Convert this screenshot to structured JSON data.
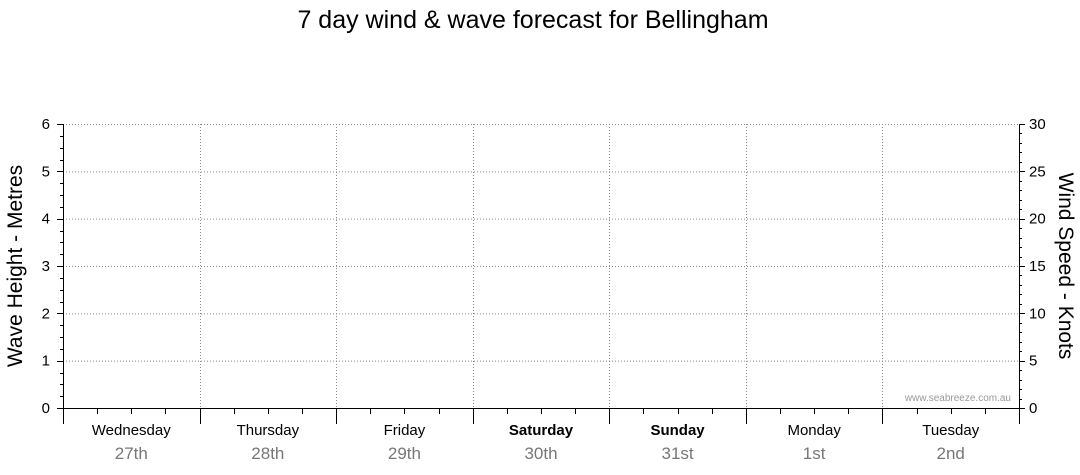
{
  "chart_data": {
    "type": "line",
    "title": "7 day wind & wave forecast for Bellingham",
    "ylabel": "Wave Height - Metres",
    "y2label": "Wind Speed - Knots",
    "ylim": [
      0,
      6
    ],
    "y2lim": [
      0,
      30
    ],
    "yticks": [
      "0",
      "1",
      "2",
      "3",
      "4",
      "5",
      "6"
    ],
    "y2ticks": [
      "0",
      "5",
      "10",
      "15",
      "20",
      "25",
      "30"
    ],
    "days": [
      {
        "name": "Wednesday",
        "date": "27th",
        "bold": false
      },
      {
        "name": "Thursday",
        "date": "28th",
        "bold": false
      },
      {
        "name": "Friday",
        "date": "29th",
        "bold": false
      },
      {
        "name": "Saturday",
        "date": "30th",
        "bold": true
      },
      {
        "name": "Sunday",
        "date": "31st",
        "bold": true
      },
      {
        "name": "Monday",
        "date": "1st",
        "bold": false
      },
      {
        "name": "Tuesday",
        "date": "2nd",
        "bold": false
      }
    ],
    "series": [],
    "grid": true,
    "watermark": "www.seabreeze.com.au"
  }
}
